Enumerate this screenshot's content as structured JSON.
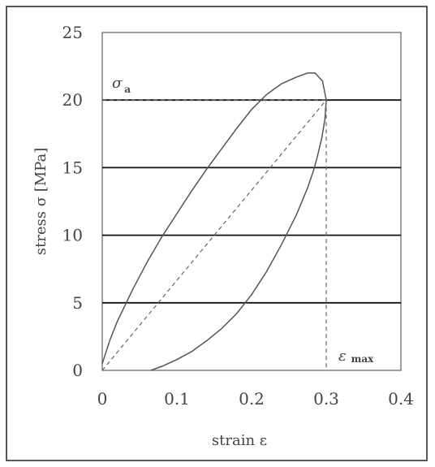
{
  "chart_data": {
    "type": "line",
    "title": "",
    "xlabel": "strain ε",
    "ylabel": "stress σ [MPa]",
    "xlim": [
      0,
      0.4
    ],
    "ylim": [
      0,
      25
    ],
    "xticks": [
      0,
      0.1,
      0.2,
      0.3,
      0.4
    ],
    "xtick_labels": [
      "0",
      "0.1",
      "0.2",
      "0.3",
      "0.4"
    ],
    "yticks": [
      0,
      5,
      10,
      15,
      20,
      25
    ],
    "ytick_labels": [
      "0",
      "5",
      "10",
      "15",
      "20",
      "25"
    ],
    "horizontal_gridlines": [
      5,
      10,
      15,
      20
    ],
    "series": [
      {
        "kind": "hysteresis-loop",
        "x": [
          0,
          0.01,
          0.02,
          0.04,
          0.06,
          0.08,
          0.1,
          0.12,
          0.14,
          0.16,
          0.18,
          0.2,
          0.22,
          0.24,
          0.26,
          0.275,
          0.285,
          0.295,
          0.3,
          0.298,
          0.294,
          0.288,
          0.283,
          0.275,
          0.26,
          0.24,
          0.22,
          0.2,
          0.18,
          0.16,
          0.14,
          0.12,
          0.1,
          0.08,
          0.065
        ],
        "y": [
          0.5,
          2.2,
          3.6,
          5.9,
          8.0,
          9.9,
          11.6,
          13.3,
          14.9,
          16.4,
          17.9,
          19.3,
          20.4,
          21.2,
          21.7,
          22.0,
          22.0,
          21.4,
          20.0,
          18.5,
          17.2,
          15.8,
          14.8,
          13.5,
          11.5,
          9.3,
          7.3,
          5.6,
          4.2,
          3.1,
          2.2,
          1.4,
          0.8,
          0.3,
          0
        ]
      },
      {
        "kind": "secant-line",
        "x": [
          0,
          0.3
        ],
        "y": [
          0,
          20
        ]
      }
    ],
    "annotations": [
      {
        "label": "σa",
        "value": 20,
        "axis": "y"
      },
      {
        "label": "ε max",
        "value": 0.3,
        "axis": "x"
      }
    ],
    "grid": true
  },
  "annotations": {
    "sigma_main": "σ",
    "sigma_sub": "a",
    "epsilon_main": "ε",
    "epsilon_sub": "max"
  }
}
